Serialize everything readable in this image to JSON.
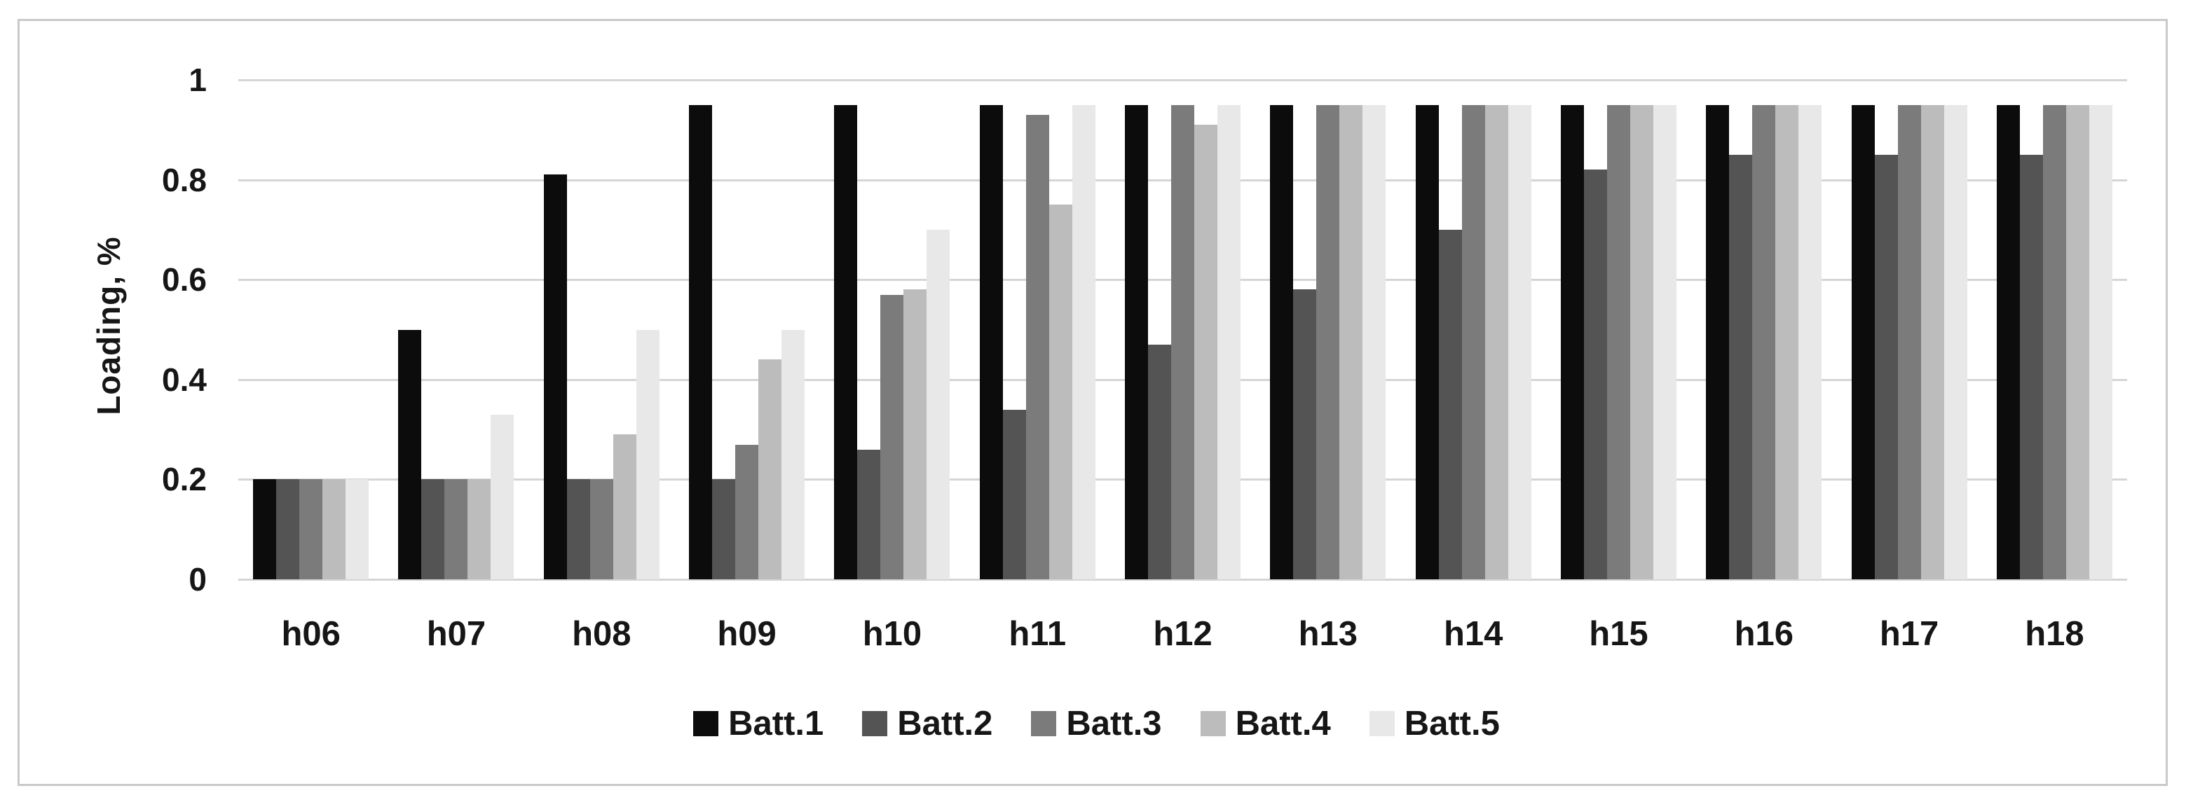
{
  "chart_data": {
    "type": "bar",
    "title": "",
    "ylabel": "Loading, %",
    "xlabel": "",
    "categories": [
      "h06",
      "h07",
      "h08",
      "h09",
      "h10",
      "h11",
      "h12",
      "h13",
      "h14",
      "h15",
      "h16",
      "h17",
      "h18"
    ],
    "series": [
      {
        "name": "Batt.1",
        "color": "#0c0c0c",
        "values": [
          0.2,
          0.5,
          0.81,
          0.95,
          0.95,
          0.95,
          0.95,
          0.95,
          0.95,
          0.95,
          0.95,
          0.95,
          0.95
        ]
      },
      {
        "name": "Batt.2",
        "color": "#545454",
        "values": [
          0.2,
          0.2,
          0.2,
          0.2,
          0.26,
          0.34,
          0.47,
          0.58,
          0.7,
          0.82,
          0.85,
          0.85,
          0.85
        ]
      },
      {
        "name": "Batt.3",
        "color": "#7b7b7b",
        "values": [
          0.2,
          0.2,
          0.2,
          0.27,
          0.57,
          0.93,
          0.95,
          0.95,
          0.95,
          0.95,
          0.95,
          0.95,
          0.95
        ]
      },
      {
        "name": "Batt.4",
        "color": "#bcbcbc",
        "values": [
          0.2,
          0.2,
          0.29,
          0.44,
          0.58,
          0.75,
          0.91,
          0.95,
          0.95,
          0.95,
          0.95,
          0.95,
          0.95
        ]
      },
      {
        "name": "Batt.5",
        "color": "#e8e8e8",
        "values": [
          0.2,
          0.33,
          0.5,
          0.5,
          0.7,
          0.95,
          0.95,
          0.95,
          0.95,
          0.95,
          0.95,
          0.95,
          0.95
        ]
      }
    ],
    "ylim": [
      0,
      1
    ],
    "yticks": [
      0,
      0.2,
      0.4,
      0.6,
      0.8,
      1
    ],
    "ytick_labels": [
      "0",
      "0.2",
      "0.4",
      "0.6",
      "0.8",
      "1"
    ],
    "grid": true,
    "gridline_color": "#d5d5d5",
    "border_color": "#c9c9c9",
    "text_color": "#161616",
    "legend_position": "bottom"
  }
}
